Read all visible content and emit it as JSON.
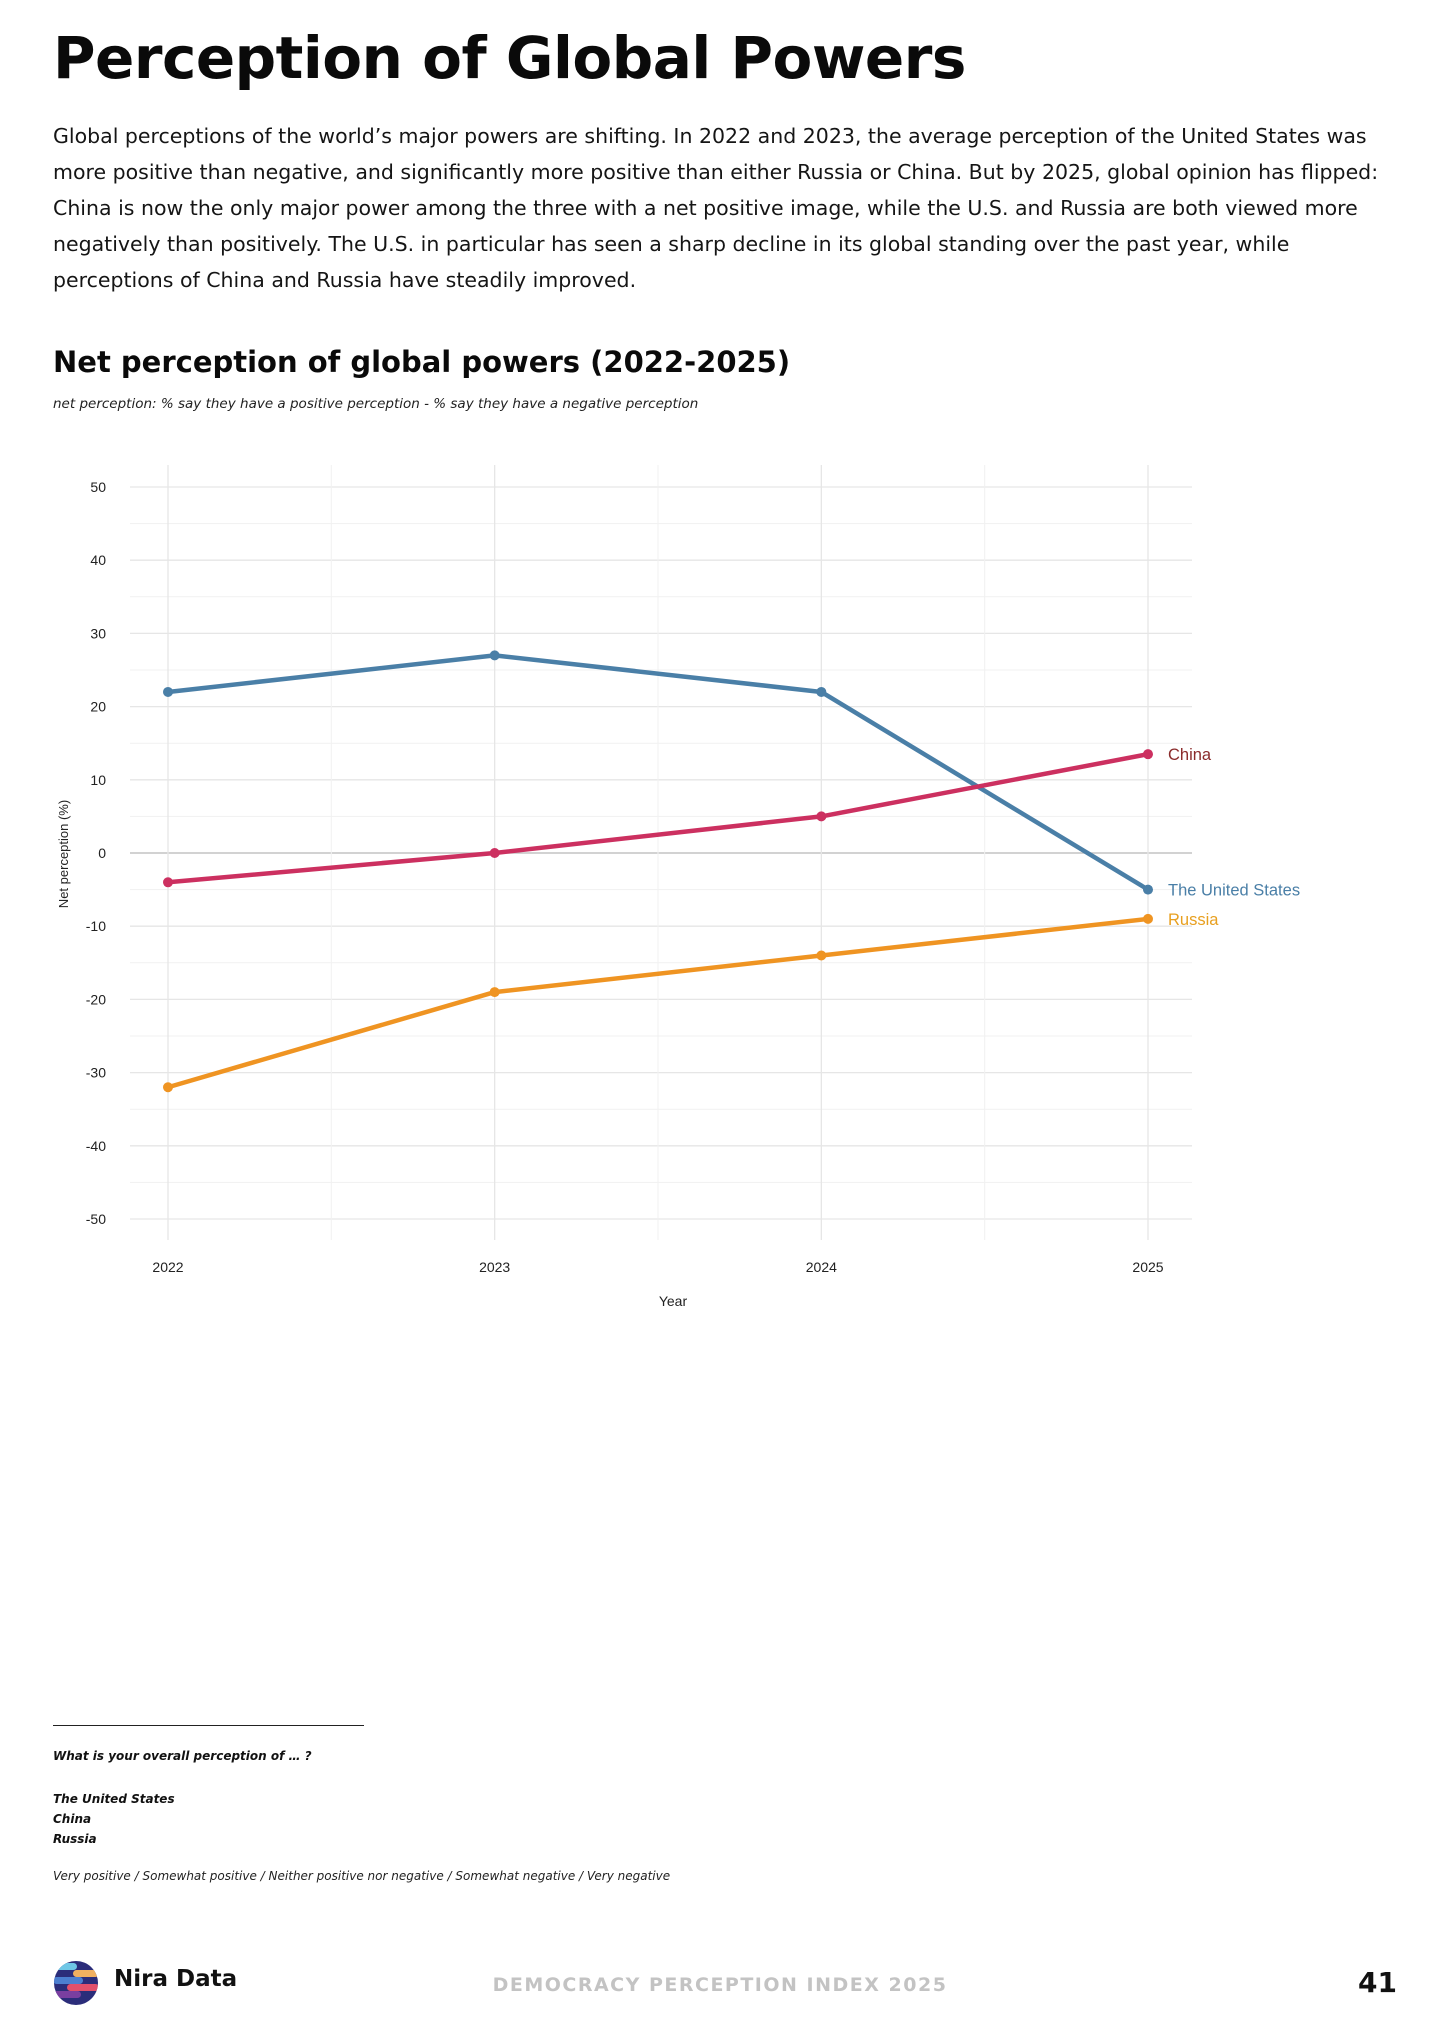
{
  "page": {
    "title": "Perception of Global Powers",
    "intro": "Global perceptions of the world’s major powers are shifting. In 2022 and 2023, the average perception of the United States was more positive than negative, and significantly more positive than either Russia or China. But by 2025, global opinion has flipped: China is now the only major power among the three with a net positive image, while the U.S. and Russia are both viewed more negatively than positively. The U.S. in particular has seen a sharp decline in its global standing over the past year, while perceptions of China and Russia have steadily improved."
  },
  "chart_data": {
    "type": "line",
    "title": "Net perception of global powers (2022-2025)",
    "subtitle": "net perception: % say they have a positive perception - % say they have a negative perception",
    "xlabel": "Year",
    "ylabel": "Net perception (%)",
    "x": [
      2022,
      2023,
      2024,
      2025
    ],
    "x_tick_labels": [
      "2022",
      "2023",
      "2024",
      "2025"
    ],
    "ylim": [
      -50,
      50
    ],
    "y_ticks": [
      50,
      40,
      30,
      20,
      10,
      0,
      -10,
      -20,
      -30,
      -40,
      -50
    ],
    "grid": true,
    "series": [
      {
        "name": "The United States",
        "color": "#4a7fa7",
        "values": [
          22,
          27,
          22,
          -5
        ]
      },
      {
        "name": "China",
        "color": "#cc3060",
        "label_color": "#8a2b2b",
        "values": [
          -4,
          0,
          5,
          13.5
        ]
      },
      {
        "name": "Russia",
        "color": "#ef9422",
        "label_color": "#e8a020",
        "values": [
          -32,
          -19,
          -14,
          -9
        ]
      }
    ]
  },
  "footnote": {
    "question": "What is your overall perception of … ?",
    "options": [
      "The United States",
      "China",
      "Russia"
    ],
    "scale": "Very positive / Somewhat positive / Neither positive nor negative / Somewhat negative / Very negative"
  },
  "footer": {
    "brand": "Nira Data",
    "report": "DEMOCRACY PERCEPTION INDEX 2025",
    "page_number": "41"
  }
}
